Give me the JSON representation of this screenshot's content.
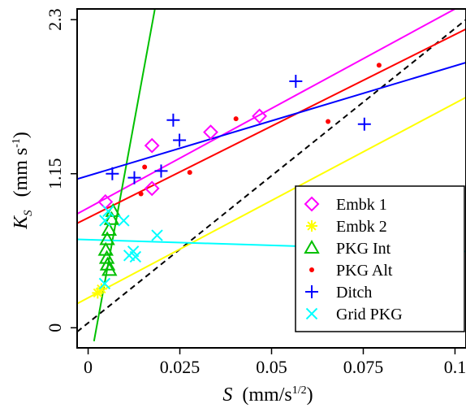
{
  "chart_data": {
    "type": "scatter",
    "title": "",
    "xlabel": {
      "symbol": "S",
      "unit_prefix": "(mm/s",
      "unit_sup": "1/2",
      "unit_suffix": ")"
    },
    "ylabel": {
      "symbol": "K",
      "symbol_sub": "S",
      "unit_prefix": "(mm s",
      "unit_sup": "-1",
      "unit_suffix": ")"
    },
    "xlim": [
      -0.003,
      0.103
    ],
    "ylim": [
      -0.15,
      2.38
    ],
    "xticks": [
      0,
      0.025,
      0.05,
      0.075,
      0.1
    ],
    "xtick_labels": [
      "0",
      "0.025",
      "0.05",
      "0.075",
      "0.1"
    ],
    "yticks": [
      0,
      1.15,
      2.3
    ],
    "ytick_labels": [
      "0",
      "1.15",
      "2.3"
    ],
    "grid": false,
    "legend_position": "bottom-right",
    "one_to_one_line": {
      "x": [
        -0.003,
        0.103
      ],
      "y": [
        -0.03,
        2.3
      ],
      "color": "#000000",
      "dash": true
    },
    "series": [
      {
        "name": "Embk 1",
        "marker": "diamond",
        "color": "#ff00ff",
        "points": [
          [
            0.0047,
            0.94
          ],
          [
            0.0174,
            1.04
          ],
          [
            0.0174,
            1.36
          ],
          [
            0.0334,
            1.46
          ],
          [
            0.0467,
            1.58
          ]
        ],
        "fit": {
          "x": [
            -0.003,
            0.1
          ],
          "y": [
            0.85,
            2.38
          ]
        }
      },
      {
        "name": "Embk 2",
        "marker": "asterisk",
        "color": "#ffff00",
        "points": [
          [
            0.0026,
            0.26
          ],
          [
            0.0036,
            0.29
          ]
        ],
        "fit": {
          "x": [
            -0.003,
            0.103
          ],
          "y": [
            0.18,
            1.72
          ]
        }
      },
      {
        "name": "PKG Int",
        "marker": "triangle",
        "color": "#00c000",
        "points": [
          [
            0.0068,
            0.87
          ],
          [
            0.0064,
            0.81
          ],
          [
            0.0057,
            0.73
          ],
          [
            0.0052,
            0.66
          ],
          [
            0.0048,
            0.58
          ],
          [
            0.0051,
            0.52
          ],
          [
            0.0053,
            0.47
          ],
          [
            0.0058,
            0.43
          ]
        ],
        "fit": {
          "x": [
            0.0016,
            0.0182
          ],
          "y": [
            -0.1,
            2.38
          ]
        }
      },
      {
        "name": "PKG Alt",
        "marker": "dot",
        "color": "#ff0000",
        "points": [
          [
            0.0144,
            1.0
          ],
          [
            0.0154,
            1.2
          ],
          [
            0.0277,
            1.16
          ],
          [
            0.0403,
            1.56
          ],
          [
            0.0654,
            1.54
          ],
          [
            0.0793,
            1.96
          ]
        ],
        "fit": {
          "x": [
            -0.003,
            0.103
          ],
          "y": [
            0.78,
            2.23
          ]
        }
      },
      {
        "name": "Ditch",
        "marker": "plus",
        "color": "#0000ff",
        "points": [
          [
            0.0066,
            1.15
          ],
          [
            0.0126,
            1.12
          ],
          [
            0.0199,
            1.17
          ],
          [
            0.0232,
            1.55
          ],
          [
            0.0249,
            1.4
          ],
          [
            0.0566,
            1.84
          ],
          [
            0.0753,
            1.52
          ]
        ],
        "fit": {
          "x": [
            -0.003,
            0.103
          ],
          "y": [
            1.11,
            1.98
          ]
        }
      },
      {
        "name": "Grid PKG",
        "marker": "x",
        "color": "#00ffff",
        "points": [
          [
            0.0046,
            0.8
          ],
          [
            0.0055,
            0.87
          ],
          [
            0.0097,
            0.8
          ],
          [
            0.0188,
            0.69
          ],
          [
            0.0112,
            0.54
          ],
          [
            0.0123,
            0.57
          ],
          [
            0.0129,
            0.53
          ],
          [
            0.0045,
            0.33
          ]
        ],
        "fit": {
          "x": [
            -0.003,
            0.103
          ],
          "y": [
            0.66,
            0.57
          ]
        }
      }
    ]
  }
}
